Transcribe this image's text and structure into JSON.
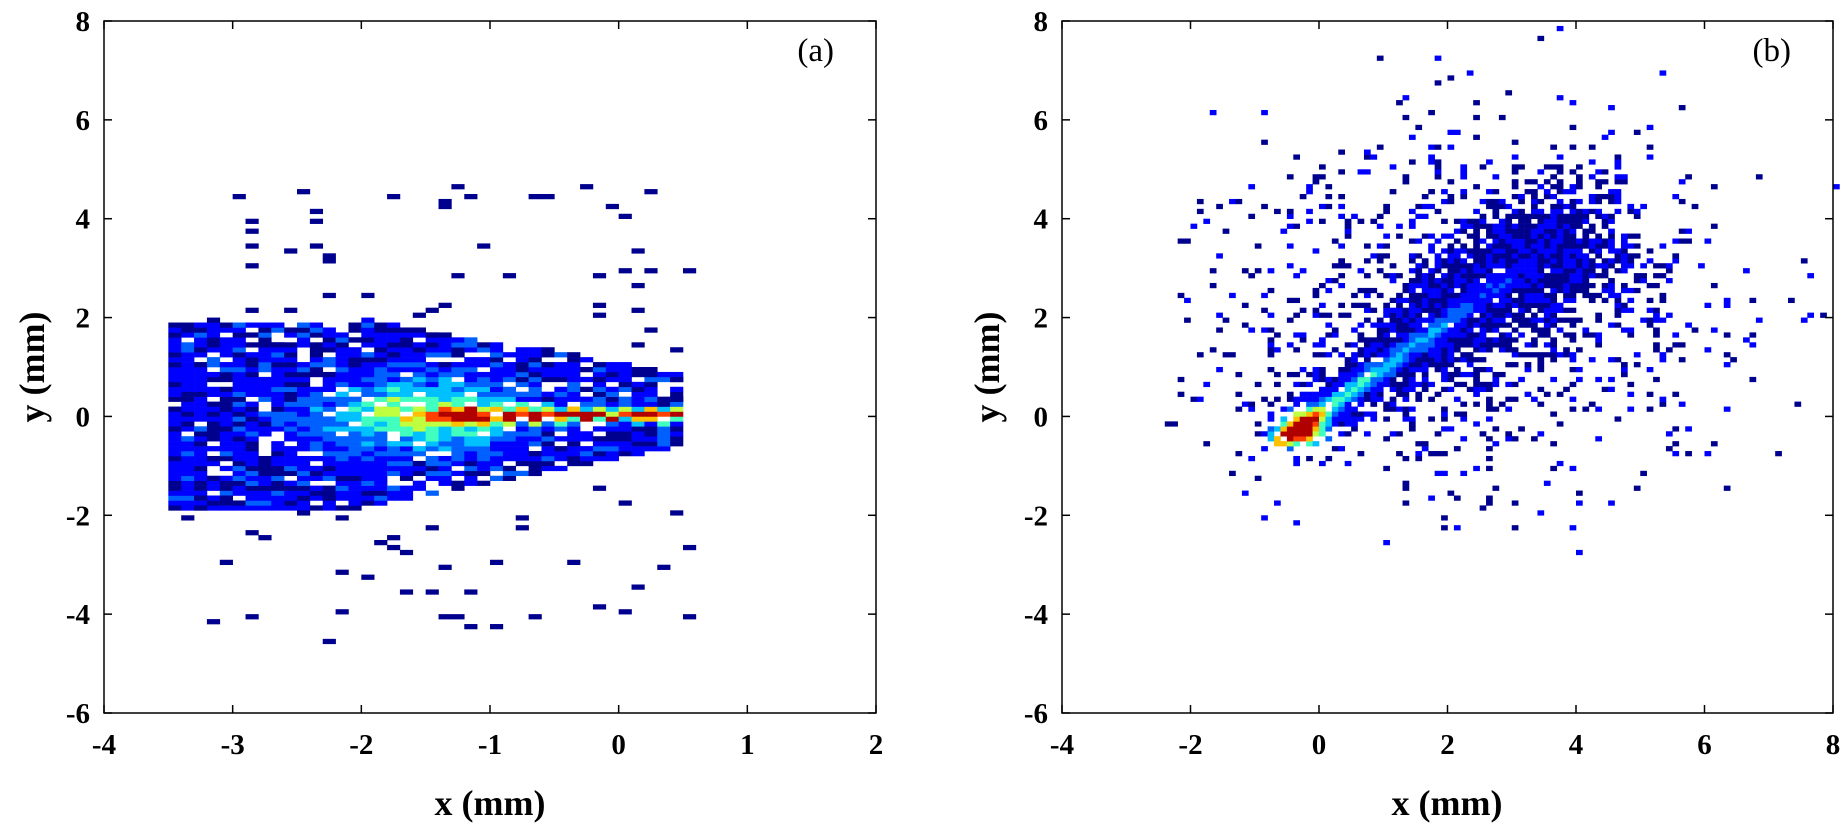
{
  "colormap": [
    "#00008f",
    "#0000ff",
    "#0060ff",
    "#00c0ff",
    "#40ffbf",
    "#bfff40",
    "#ffc000",
    "#ff4000",
    "#b00000"
  ],
  "chart_data": [
    {
      "type": "heatmap",
      "panel_label": "(a)",
      "xlabel": "x (mm)",
      "ylabel": "y (mm)",
      "xlim": [
        -4,
        2
      ],
      "ylim": [
        -6,
        8
      ],
      "xticks": [
        -4,
        -3,
        -2,
        -1,
        0,
        1,
        2
      ],
      "yticks": [
        -6,
        -4,
        -2,
        0,
        2,
        4,
        6,
        8
      ],
      "xtick_labels": [
        "-4",
        "-3",
        "-2",
        "-1",
        "0",
        "1",
        "2"
      ],
      "ytick_labels": [
        "-6",
        "-4",
        "-2",
        "0",
        "2",
        "4",
        "6",
        "8"
      ],
      "grid": false,
      "bin_size_mm": 0.1,
      "description_of_density": {
        "dense_region": {
          "x_range": [
            -3.5,
            0.5
          ],
          "y_range_at_left": [
            -1.9,
            1.9
          ],
          "y_range_at_right": [
            -0.6,
            0.8
          ]
        },
        "peak_ridge": {
          "x_range": [
            -1.5,
            0.5
          ],
          "y": 0.0
        },
        "sparse_outliers_x_range": [
          -3.4,
          0.5
        ],
        "sparse_outliers_y_range": [
          -4.8,
          4.5
        ]
      }
    },
    {
      "type": "heatmap",
      "panel_label": "(b)",
      "xlabel": "x (mm)",
      "ylabel": "y (mm)",
      "xlim": [
        -4,
        8
      ],
      "ylim": [
        -6,
        8
      ],
      "xticks": [
        -4,
        -2,
        0,
        2,
        4,
        6,
        8
      ],
      "yticks": [
        -6,
        -4,
        -2,
        0,
        2,
        4,
        6,
        8
      ],
      "xtick_labels": [
        "-4",
        "-2",
        "0",
        "2",
        "4",
        "6",
        "8"
      ],
      "ytick_labels": [
        "-6",
        "-4",
        "-2",
        "0",
        "2",
        "4",
        "6",
        "8"
      ],
      "grid": false,
      "bin_size_mm": 0.1,
      "description_of_density": {
        "peak": {
          "x": -0.3,
          "y": -0.3
        },
        "ridge_from": {
          "x": -0.5,
          "y": -0.4
        },
        "ridge_to": {
          "x": 3.6,
          "y": 3.4
        },
        "sparse_outliers_x_range": [
          -2.3,
          8.0
        ],
        "sparse_outliers_y_range": [
          -2.7,
          7.9
        ]
      }
    }
  ]
}
